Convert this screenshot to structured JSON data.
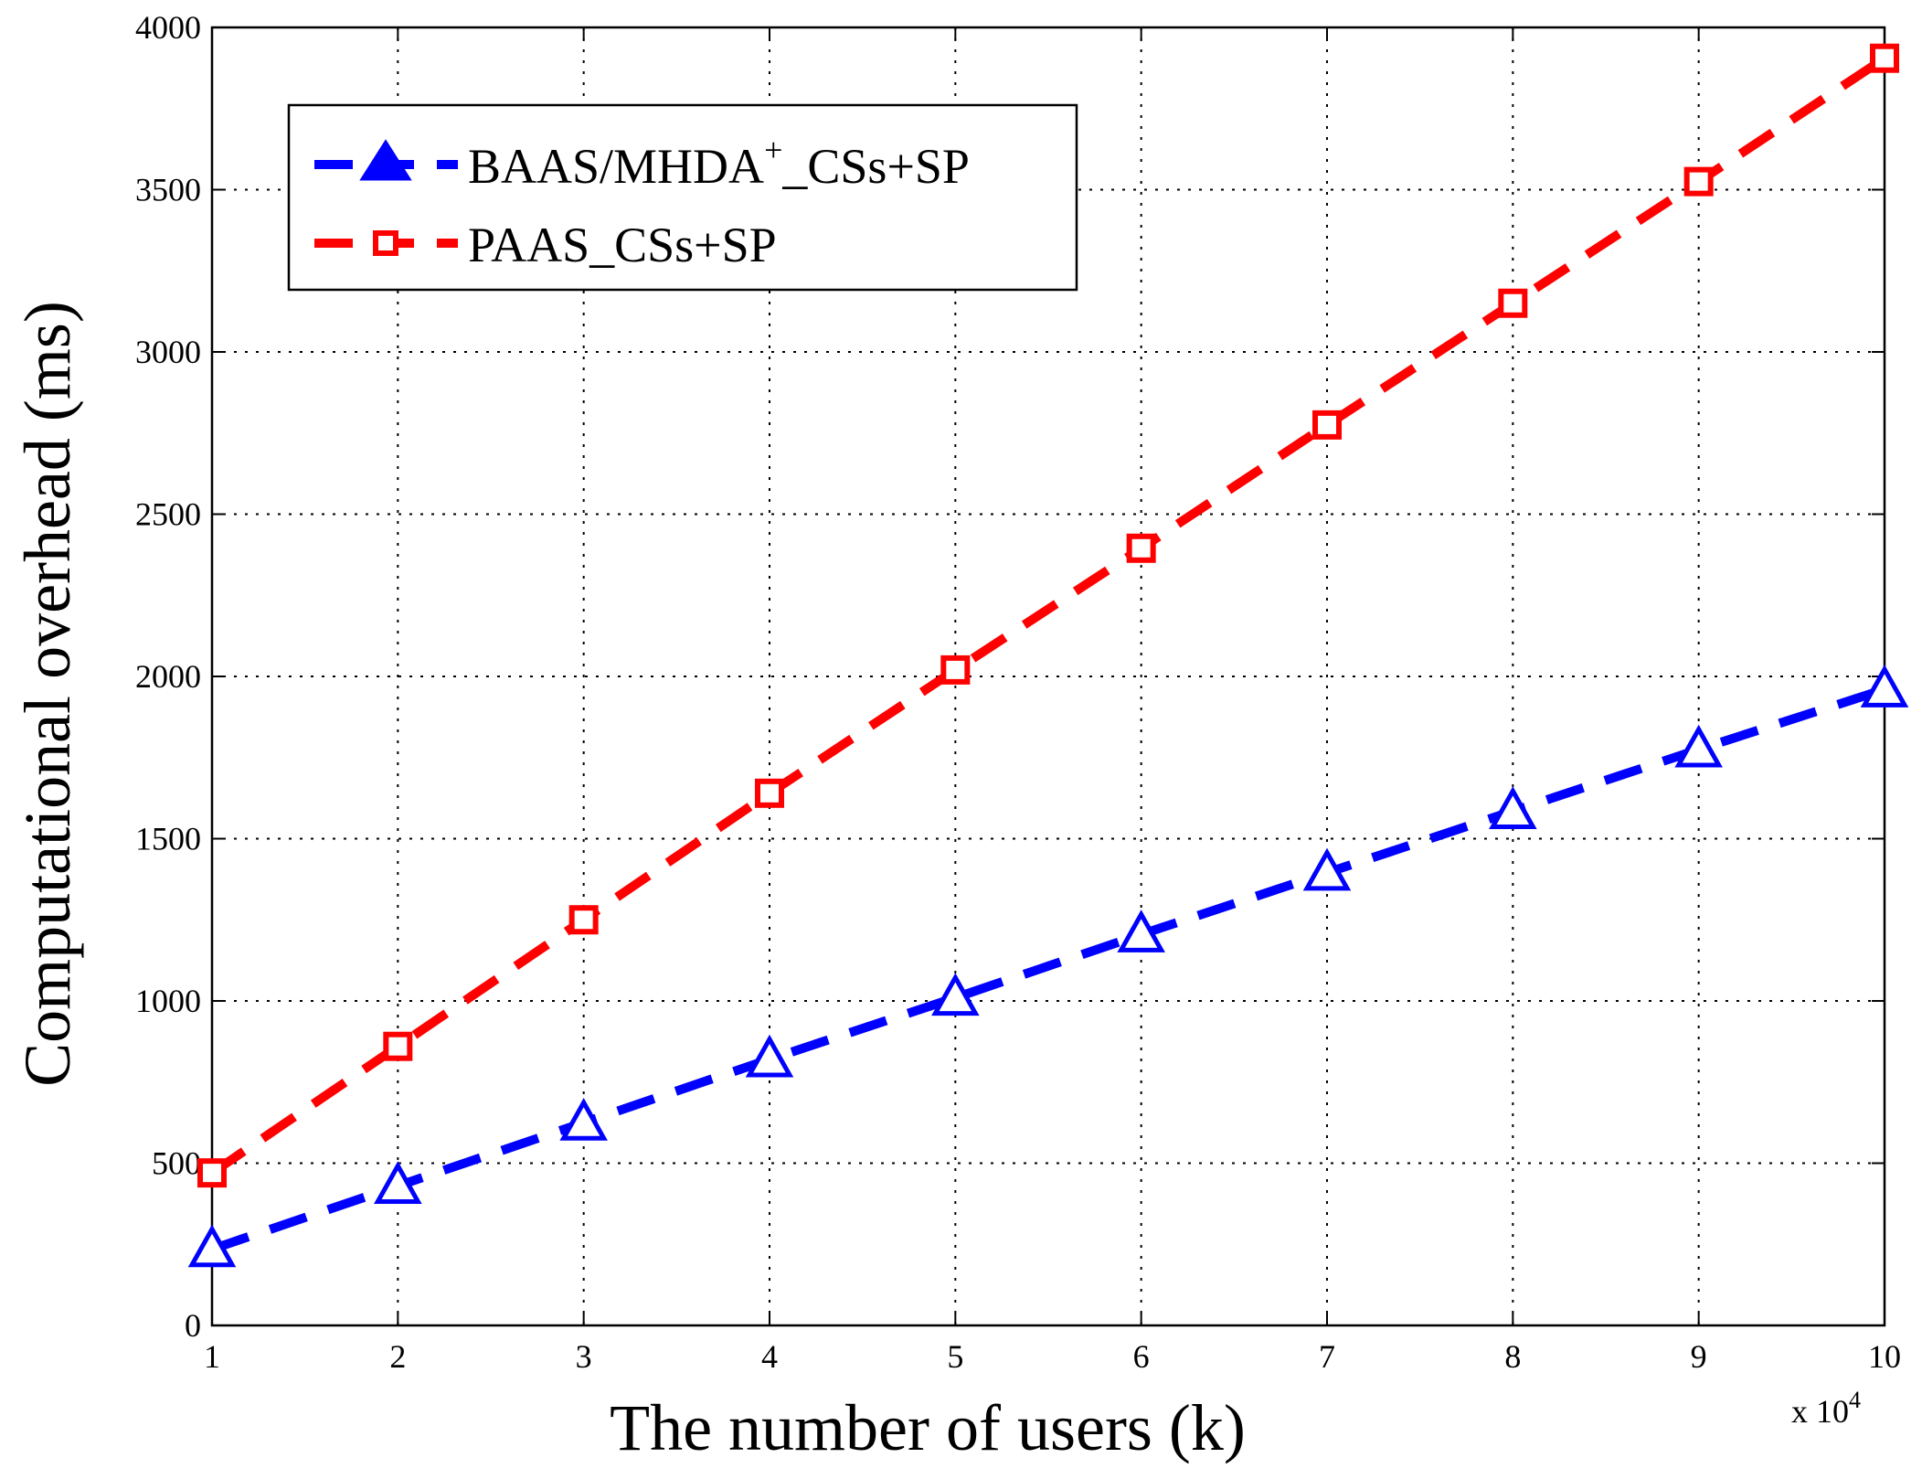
{
  "chart_data": {
    "type": "line",
    "xlabel": "The number of users (k)",
    "ylabel": "Computational overhead (ms)",
    "x_multiplier": {
      "base": "x 10",
      "exponent": "4"
    },
    "x": [
      1,
      2,
      3,
      4,
      5,
      6,
      7,
      8,
      9,
      10
    ],
    "xlim": [
      1,
      10
    ],
    "ylim": [
      0,
      4000
    ],
    "x_ticks": [
      "1",
      "2",
      "3",
      "4",
      "5",
      "6",
      "7",
      "8",
      "9",
      "10"
    ],
    "y_ticks": [
      "0",
      "500",
      "1000",
      "1500",
      "2000",
      "2500",
      "3000",
      "3500",
      "4000"
    ],
    "grid": true,
    "legend_position": "top-left",
    "series": [
      {
        "name": "BAAS/MHDA+_CSs+SP",
        "legend_parts": {
          "main": "BAAS/MHDA",
          "sup": "+",
          "rest": "_CSs+SP"
        },
        "color": "#0000ff",
        "marker": "triangle",
        "values": [
          235,
          430,
          625,
          820,
          1010,
          1205,
          1395,
          1585,
          1775,
          1960
        ]
      },
      {
        "name": "PAAS_CSs+SP",
        "color": "#ff0000",
        "marker": "square",
        "values": [
          470,
          860,
          1250,
          1640,
          2020,
          2395,
          2775,
          3150,
          3525,
          3905
        ]
      }
    ]
  }
}
